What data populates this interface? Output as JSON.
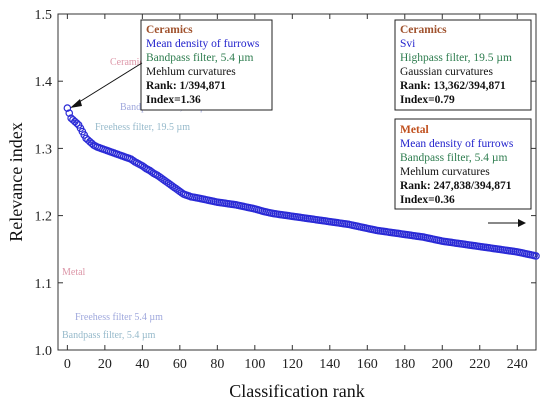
{
  "chart_data": {
    "type": "scatter",
    "xlabel": "Classification rank",
    "ylabel": "Relevance index",
    "xlim": [
      -5,
      250
    ],
    "ylim": [
      1.0,
      1.5
    ],
    "xticks": [
      0,
      20,
      40,
      60,
      80,
      100,
      120,
      140,
      160,
      180,
      200,
      220,
      240
    ],
    "yticks": [
      1.0,
      1.1,
      1.2,
      1.3,
      1.4,
      1.5
    ],
    "marker_color": "#2b2bd6",
    "series": [
      {
        "x": [
          0,
          2,
          4,
          6,
          8,
          10,
          12,
          14,
          16,
          18,
          20,
          22,
          24,
          26,
          28,
          30,
          32,
          34,
          36,
          38,
          40,
          42,
          44,
          46,
          48,
          50,
          52,
          54,
          56,
          58,
          60,
          62,
          64,
          66,
          68,
          70,
          75,
          80,
          85,
          90,
          95,
          100,
          105,
          110,
          115,
          120,
          125,
          130,
          135,
          140,
          145,
          150,
          155,
          160,
          165,
          170,
          175,
          180,
          185,
          190,
          195,
          200,
          205,
          210,
          215,
          220,
          225,
          230,
          235,
          240,
          245,
          250
        ],
        "y": [
          1.36,
          1.345,
          1.34,
          1.335,
          1.325,
          1.315,
          1.31,
          1.305,
          1.302,
          1.3,
          1.298,
          1.296,
          1.294,
          1.292,
          1.29,
          1.288,
          1.286,
          1.284,
          1.28,
          1.277,
          1.274,
          1.27,
          1.267,
          1.263,
          1.26,
          1.256,
          1.252,
          1.248,
          1.244,
          1.24,
          1.236,
          1.232,
          1.23,
          1.228,
          1.227,
          1.226,
          1.223,
          1.22,
          1.218,
          1.216,
          1.213,
          1.21,
          1.206,
          1.203,
          1.201,
          1.199,
          1.197,
          1.195,
          1.193,
          1.191,
          1.189,
          1.187,
          1.184,
          1.181,
          1.178,
          1.176,
          1.174,
          1.172,
          1.17,
          1.168,
          1.165,
          1.162,
          1.16,
          1.158,
          1.156,
          1.154,
          1.152,
          1.15,
          1.148,
          1.146,
          1.143,
          1.14
        ]
      }
    ]
  },
  "annotations": {
    "box1": {
      "title": "Ceramics",
      "line1": "Mean density of furrows",
      "line2": "Bandpass filter, 5.4 µm",
      "line3": "Mehlum curvatures",
      "rank": "Rank: 1/394,871",
      "index": "Index=1.36"
    },
    "box2": {
      "title": "Ceramics",
      "line1": "Svi",
      "line2": "Highpass filter, 19.5 µm",
      "line3": "Gaussian curvatures",
      "rank": "Rank: 13,362/394,871",
      "index": "Index=0.79"
    },
    "box3": {
      "title": "Metal",
      "line1": "Mean density of furrows",
      "line2": "Bandpass filter, 5.4 µm",
      "line3": "Mehlum curvatures",
      "rank": "Rank: 247,838/394,871",
      "index": "Index=0.36"
    },
    "colors": {
      "title_brown": "#a0522d",
      "title_orange": "#c0501e",
      "line_blue": "#2222cc",
      "line_green": "#2e7d4f"
    }
  }
}
